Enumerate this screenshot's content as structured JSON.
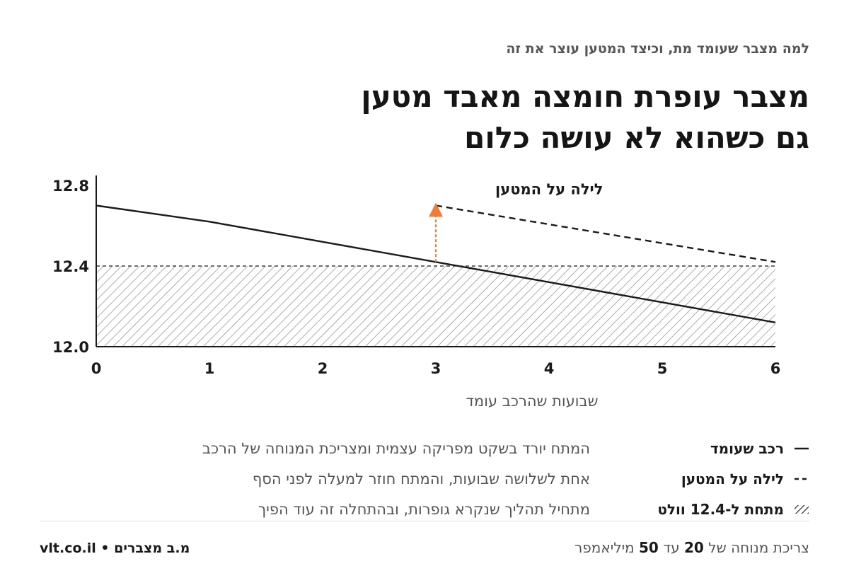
{
  "kicker": "למה מצבר שעומד מת, וכיצד המטען עוצר את זה",
  "title": {
    "line1": "מצבר עופרת חומצה מאבד מטען",
    "line2": "גם כשהוא לא עושה כלום"
  },
  "colors": {
    "ink": "#1a1a1a",
    "muted": "#555555",
    "accent": "#f07c3c",
    "hatch": "#8a8a8a"
  },
  "chart_data": {
    "type": "line",
    "xlabel": "שבועות שהרכב עומד",
    "ylabel": "",
    "xlim": [
      0,
      6
    ],
    "ylim": [
      12.0,
      12.8
    ],
    "x_ticks": [
      "0",
      "1",
      "2",
      "3",
      "4",
      "5",
      "6"
    ],
    "y_ticks": [
      "12.0",
      "12.4",
      "12.8"
    ],
    "grid": false,
    "series": [
      {
        "name": "רכב שעומד",
        "style": "solid",
        "x": [
          0,
          1,
          2,
          3,
          4,
          5,
          6
        ],
        "y": [
          12.7,
          12.62,
          12.52,
          12.42,
          12.32,
          12.22,
          12.12
        ]
      },
      {
        "name": "לילה על המטען",
        "style": "dashed",
        "x": [
          3,
          6
        ],
        "y": [
          12.7,
          12.42
        ]
      }
    ],
    "threshold": {
      "y": 12.4,
      "style": "dashed",
      "region": "below",
      "fill": "hatched"
    },
    "annotation": {
      "text": "לילה על המטען",
      "x": 3,
      "y_from": 12.42,
      "y_to": 12.7,
      "arrow_color": "#f07c3c"
    }
  },
  "legend": [
    {
      "symbol": "solid",
      "label": "רכב שעומד",
      "desc": "המתח יורד בשקט מפריקה עצמית ומצריכת המנוחה של הרכב"
    },
    {
      "symbol": "dashed",
      "label": "לילה על המטען",
      "desc": "אחת לשלושה שבועות, והמתח חוזר למעלה לפני הסף"
    },
    {
      "symbol": "hatched",
      "label_prefix": "מתחת ל-",
      "label_value": "12.4",
      "label_suffix": "וולט",
      "desc": "מתחיל תהליך שנקרא גופרות, ובהתחלה זה עוד הפיך"
    }
  ],
  "footer": {
    "rest_prefix": "צריכת מנוחה של",
    "rest_low": "20",
    "rest_mid": "עד",
    "rest_high": "50",
    "rest_unit": "מיליאמפר",
    "brand": "מ.ב מצברים",
    "separator": "•",
    "site": "vlt.co.il"
  }
}
